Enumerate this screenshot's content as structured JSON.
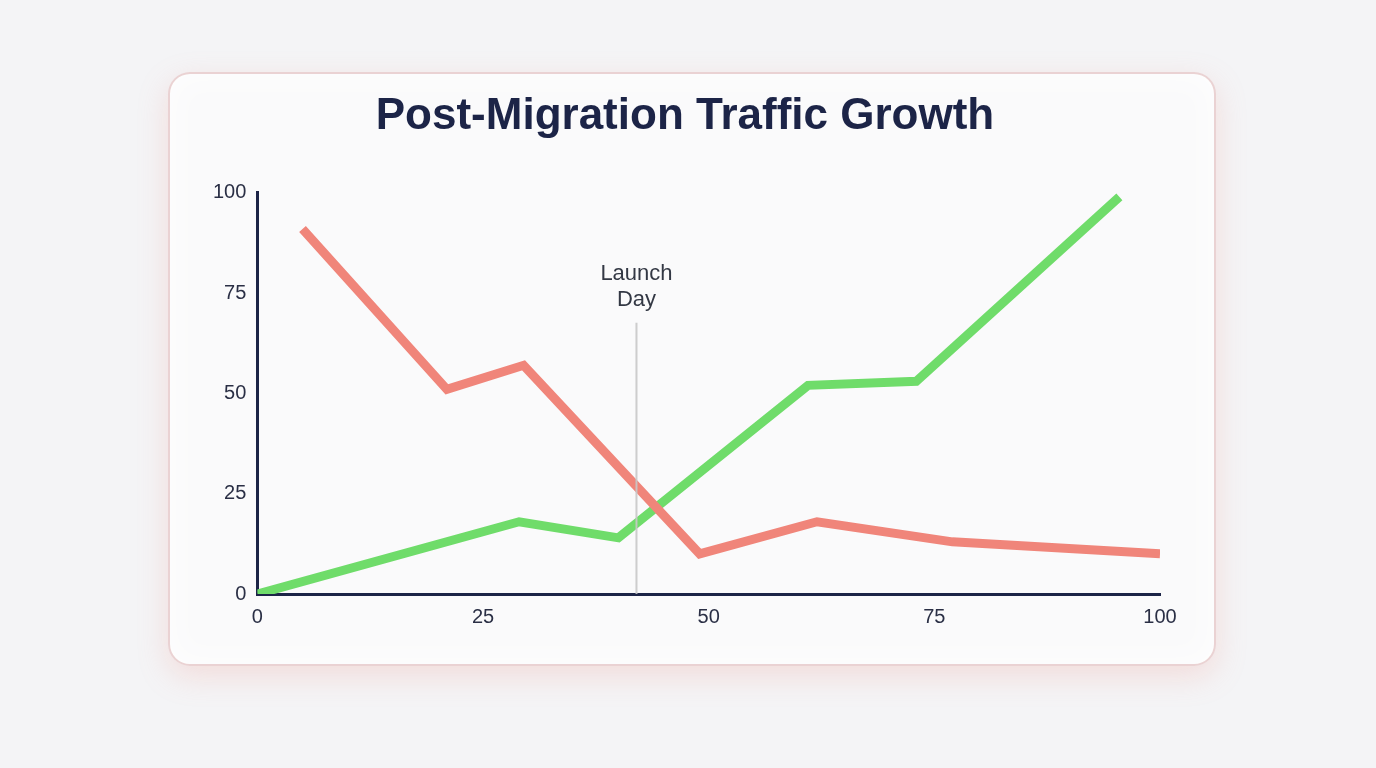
{
  "chart_data": {
    "type": "line",
    "title": "Post-Migration Traffic Growth",
    "series": [
      {
        "color": "#f0857a",
        "x": [
          5,
          21,
          29.5,
          49,
          62,
          77,
          100
        ],
        "values": [
          91,
          51,
          57,
          10,
          18,
          13,
          10
        ]
      },
      {
        "color": "#6fdc6a",
        "x": [
          0,
          29,
          40,
          61,
          73,
          95.5
        ],
        "values": [
          0,
          18,
          14,
          52,
          53,
          99
        ]
      }
    ],
    "annotations": [
      {
        "text": "Launch Day",
        "x": 42
      }
    ],
    "xlim": [
      0,
      100
    ],
    "xticks": [
      0,
      25,
      50,
      75,
      100
    ],
    "ylim": [
      0,
      100
    ],
    "yticks": [
      0,
      25,
      50,
      75,
      100
    ],
    "grid": false
  }
}
